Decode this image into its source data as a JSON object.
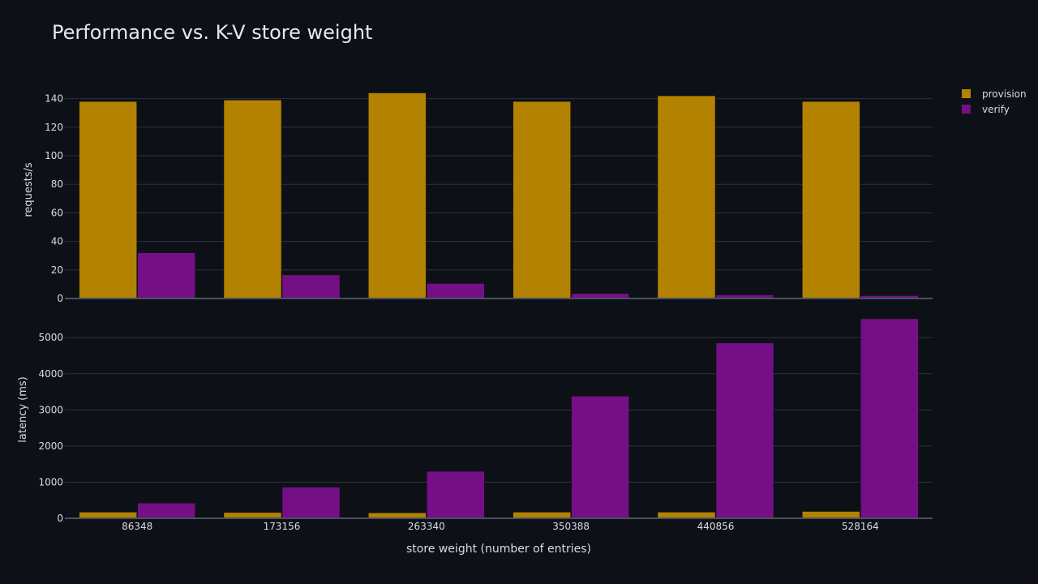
{
  "chart_data": {
    "type": "bar",
    "title": "Performance vs. K-V store weight",
    "xlabel": "store weight (number of entries)",
    "categories": [
      "86348",
      "173156",
      "263340",
      "350388",
      "440856",
      "528164"
    ],
    "colors": {
      "provision": "#b38200",
      "verify": "#750f86"
    },
    "legend_position": "top-right",
    "grid": true,
    "subplots": [
      {
        "ylabel": "requests/s",
        "ylim": [
          0,
          150
        ],
        "yticks": [
          0,
          20,
          40,
          60,
          80,
          100,
          120,
          140
        ],
        "series": [
          {
            "name": "provision",
            "values": [
              138,
              139,
              144,
              138,
              142,
              138
            ]
          },
          {
            "name": "verify",
            "values": [
              32,
              16.5,
              10.5,
              3.5,
              2.5,
              2
            ]
          }
        ]
      },
      {
        "ylabel": "latency (ms)",
        "ylim": [
          0,
          5700
        ],
        "yticks": [
          0,
          1000,
          2000,
          3000,
          4000,
          5000
        ],
        "series": [
          {
            "name": "provision",
            "values": [
              170,
              160,
              150,
              170,
              170,
              190
            ]
          },
          {
            "name": "verify",
            "values": [
              420,
              860,
              1300,
              3380,
              4850,
              5520
            ]
          }
        ]
      }
    ]
  }
}
